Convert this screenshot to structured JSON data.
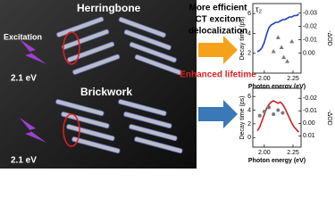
{
  "page": {
    "herringbone": "Herringbone",
    "brickwork": "Brickwork",
    "excitation": "Excitation",
    "energy_top": "2.1 eV",
    "energy_bottom": "2.1 eV",
    "caption_line1": "More efficient",
    "caption_line2": "CT exciton",
    "caption_line3": "delocalization",
    "enhanced": "Enhanced lifetime"
  },
  "chart_data": [
    {
      "type": "scatter",
      "annotation": "τ₂",
      "ylabel": "Decay time (ps)",
      "y2label": "-ΔOD",
      "xlabel": "Photon energy (eV)",
      "xlim": [
        1.9,
        2.32
      ],
      "xticks": [
        {
          "value": 2,
          "label": "2.00"
        },
        2.25
      ],
      "ylim": [
        0,
        7
      ],
      "yticks": [
        2,
        4,
        6
      ],
      "y2lim": [
        0.015,
        -0.037
      ],
      "y2ticks": [
        -0.03,
        -0.02,
        -0.01,
        {
          "value": 0,
          "label": "0.00"
        }
      ],
      "series": [
        {
          "marker": "line",
          "color": "#1f3fbf",
          "axis": "y2",
          "x": [
            1.94,
            1.96,
            1.98,
            2.0,
            2.02,
            2.04,
            2.06,
            2.08,
            2.1,
            2.12,
            2.14,
            2.16,
            2.18,
            2.2,
            2.22,
            2.24,
            2.26,
            2.28,
            2.3
          ],
          "values": [
            -0.001,
            -0.002,
            -0.004,
            -0.008,
            -0.014,
            -0.019,
            -0.021,
            -0.022,
            -0.023,
            -0.023,
            -0.024,
            -0.025,
            -0.025,
            -0.026,
            -0.027,
            -0.027,
            -0.028,
            -0.028,
            -0.029
          ]
        },
        {
          "marker": "triangle",
          "color": "#777777",
          "x": [
            2.08,
            2.12,
            2.15,
            2.17,
            2.2,
            2.24
          ],
          "values": [
            2.2,
            3.6,
            2.6,
            1.6,
            1.2,
            3.2
          ]
        }
      ]
    },
    {
      "type": "scatter",
      "ylabel": "Decay time (ps)",
      "y2label": "-ΔOD",
      "xlabel": "Photon energy (eV)",
      "xlim": [
        1.9,
        2.32
      ],
      "xticks": [
        {
          "value": 2,
          "label": "2.00"
        },
        2.25
      ],
      "ylim": [
        -1.4,
        7.2
      ],
      "yticks": [
        0,
        2,
        4,
        6
      ],
      "y2lim": [
        0.019,
        -0.028
      ],
      "y2ticks": [
        -0.02,
        -0.01,
        {
          "value": 0,
          "label": "0.00"
        },
        0.01
      ],
      "series": [
        {
          "marker": "line",
          "color": "#cc2020",
          "axis": "y2",
          "x": [
            1.94,
            1.96,
            1.98,
            2.0,
            2.02,
            2.04,
            2.06,
            2.08,
            2.1,
            2.12,
            2.14,
            2.16,
            2.18,
            2.2,
            2.22,
            2.24,
            2.26,
            2.28,
            2.3
          ],
          "values": [
            0.006,
            0.003,
            -0.002,
            -0.007,
            -0.012,
            -0.015,
            -0.017,
            -0.018,
            -0.017,
            -0.016,
            -0.017,
            -0.015,
            -0.012,
            -0.008,
            -0.004,
            0.0,
            0.003,
            0.005,
            0.007
          ]
        },
        {
          "marker": "circle",
          "color": "#777777",
          "x": [
            1.96,
            2.0,
            2.04,
            2.08,
            2.12,
            2.16
          ],
          "values": [
            3.2,
            3.8,
            4.4,
            3.4,
            4.0,
            3.6
          ]
        }
      ]
    }
  ]
}
